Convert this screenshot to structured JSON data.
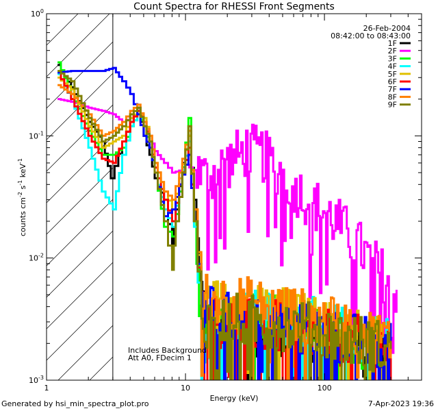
{
  "chart_data": {
    "type": "line",
    "title": "Count Spectra for RHESSI Front Segments",
    "xlabel": "Energy (keV)",
    "ylabel": "counts cm^-2 s^-1 keV^-1",
    "xscale": "log",
    "yscale": "log",
    "xlim": [
      1,
      500
    ],
    "ylim": [
      0.001,
      1
    ],
    "x_ticks": [
      1,
      10,
      100
    ],
    "x_tick_labels": [
      "1",
      "10",
      "100"
    ],
    "y_ticks": [
      0.001,
      0.01,
      0.1,
      1
    ],
    "y_tick_labels": [
      "10^-3",
      "10^-2",
      "10^-1",
      "10^0"
    ],
    "attenuated_region_max_kev": 3,
    "date": "26-Feb-2004",
    "time_range": "08:42:00 to 08:43:00",
    "annotations": [
      "Includes Background",
      "Att A0, FDecim 1"
    ],
    "series": [
      {
        "name": "1F",
        "color": "#000000",
        "points": [
          [
            1.2,
            0.38
          ],
          [
            1.5,
            0.25
          ],
          [
            2.0,
            0.13
          ],
          [
            2.5,
            0.09
          ],
          [
            2.9,
            0.045
          ],
          [
            3.5,
            0.09
          ],
          [
            4.0,
            0.13
          ],
          [
            4.5,
            0.17
          ],
          [
            5.0,
            0.1
          ],
          [
            5.5,
            0.07
          ],
          [
            6.0,
            0.045
          ],
          [
            7.0,
            0.03
          ],
          [
            8.0,
            0.012
          ],
          [
            8.5,
            0.025
          ],
          [
            9.5,
            0.06
          ],
          [
            10.5,
            0.1
          ],
          [
            11.5,
            0.03
          ],
          [
            12.5,
            0.007
          ],
          [
            14,
            0.0028
          ],
          [
            20,
            0.0022
          ],
          [
            30,
            0.0026
          ],
          [
            50,
            0.0024
          ],
          [
            80,
            0.0021
          ],
          [
            120,
            0.0019
          ],
          [
            200,
            0.0017
          ],
          [
            300,
            0.0017
          ]
        ]
      },
      {
        "name": "2F",
        "color": "#ff00ff",
        "points": [
          [
            1.2,
            0.2
          ],
          [
            1.5,
            0.19
          ],
          [
            2.0,
            0.17
          ],
          [
            2.5,
            0.16
          ],
          [
            3.0,
            0.15
          ],
          [
            3.5,
            0.13
          ],
          [
            4.0,
            0.14
          ],
          [
            4.5,
            0.15
          ],
          [
            5.0,
            0.12
          ],
          [
            5.5,
            0.1
          ],
          [
            6.0,
            0.075
          ],
          [
            7.0,
            0.06
          ],
          [
            8.0,
            0.05
          ],
          [
            9.0,
            0.052
          ],
          [
            10.0,
            0.058
          ],
          [
            12.0,
            0.05
          ],
          [
            14,
            0.045
          ],
          [
            18,
            0.055
          ],
          [
            22,
            0.065
          ],
          [
            28,
            0.078
          ],
          [
            35,
            0.07
          ],
          [
            45,
            0.055
          ],
          [
            60,
            0.038
          ],
          [
            80,
            0.028
          ],
          [
            100,
            0.024
          ],
          [
            130,
            0.018
          ],
          [
            170,
            0.013
          ],
          [
            220,
            0.009
          ],
          [
            270,
            0.007
          ],
          [
            330,
            0.0055
          ]
        ]
      },
      {
        "name": "3F",
        "color": "#00ff00",
        "points": [
          [
            1.2,
            0.4
          ],
          [
            1.5,
            0.22
          ],
          [
            2.0,
            0.11
          ],
          [
            2.5,
            0.07
          ],
          [
            3.0,
            0.07
          ],
          [
            3.5,
            0.08
          ],
          [
            4.0,
            0.12
          ],
          [
            4.5,
            0.15
          ],
          [
            5.0,
            0.12
          ],
          [
            5.5,
            0.08
          ],
          [
            6.0,
            0.05
          ],
          [
            7.0,
            0.018
          ],
          [
            8.0,
            0.015
          ],
          [
            9.0,
            0.035
          ],
          [
            10.5,
            0.14
          ],
          [
            11.5,
            0.02
          ],
          [
            12.5,
            0.004
          ],
          [
            15,
            0.0025
          ],
          [
            20,
            0.003
          ],
          [
            30,
            0.0032
          ],
          [
            50,
            0.003
          ],
          [
            80,
            0.0025
          ],
          [
            120,
            0.0022
          ],
          [
            200,
            0.002
          ],
          [
            300,
            0.0018
          ]
        ]
      },
      {
        "name": "4F",
        "color": "#00ffff",
        "points": [
          [
            1.2,
            0.32
          ],
          [
            1.5,
            0.2
          ],
          [
            2.0,
            0.08
          ],
          [
            2.5,
            0.035
          ],
          [
            3.0,
            0.025
          ],
          [
            3.5,
            0.07
          ],
          [
            4.0,
            0.12
          ],
          [
            4.5,
            0.15
          ],
          [
            5.0,
            0.13
          ],
          [
            5.5,
            0.09
          ],
          [
            6.0,
            0.05
          ],
          [
            7.0,
            0.025
          ],
          [
            8.0,
            0.018
          ],
          [
            9.0,
            0.04
          ],
          [
            10.5,
            0.09
          ],
          [
            11.5,
            0.018
          ],
          [
            13,
            0.0022
          ],
          [
            18,
            0.0028
          ],
          [
            30,
            0.0033
          ],
          [
            50,
            0.0032
          ],
          [
            80,
            0.0029
          ],
          [
            120,
            0.0025
          ],
          [
            200,
            0.0022
          ],
          [
            300,
            0.002
          ]
        ]
      },
      {
        "name": "5F",
        "color": "#e0c000",
        "points": [
          [
            1.2,
            0.3
          ],
          [
            1.5,
            0.24
          ],
          [
            2.0,
            0.12
          ],
          [
            2.5,
            0.08
          ],
          [
            3.0,
            0.09
          ],
          [
            3.5,
            0.1
          ],
          [
            4.0,
            0.14
          ],
          [
            4.5,
            0.16
          ],
          [
            5.0,
            0.14
          ],
          [
            5.5,
            0.1
          ],
          [
            6.0,
            0.06
          ],
          [
            7.0,
            0.035
          ],
          [
            8.0,
            0.025
          ],
          [
            9.0,
            0.045
          ],
          [
            10.5,
            0.1
          ],
          [
            11.5,
            0.025
          ],
          [
            13,
            0.0045
          ],
          [
            18,
            0.004
          ],
          [
            30,
            0.0038
          ],
          [
            50,
            0.0035
          ],
          [
            80,
            0.003
          ],
          [
            120,
            0.0026
          ],
          [
            200,
            0.0023
          ],
          [
            300,
            0.002
          ]
        ]
      },
      {
        "name": "6F",
        "color": "#ff0000",
        "points": [
          [
            1.2,
            0.33
          ],
          [
            1.5,
            0.2
          ],
          [
            2.0,
            0.1
          ],
          [
            2.5,
            0.065
          ],
          [
            3.0,
            0.06
          ],
          [
            3.5,
            0.09
          ],
          [
            4.0,
            0.13
          ],
          [
            4.5,
            0.16
          ],
          [
            5.0,
            0.13
          ],
          [
            5.5,
            0.09
          ],
          [
            6.0,
            0.055
          ],
          [
            7.0,
            0.03
          ],
          [
            8.0,
            0.02
          ],
          [
            9.0,
            0.04
          ],
          [
            10.5,
            0.08
          ],
          [
            11.5,
            0.02
          ],
          [
            13,
            0.0035
          ],
          [
            18,
            0.003
          ],
          [
            30,
            0.0028
          ],
          [
            50,
            0.0027
          ],
          [
            80,
            0.0024
          ],
          [
            120,
            0.0022
          ],
          [
            200,
            0.002
          ],
          [
            300,
            0.0018
          ]
        ]
      },
      {
        "name": "7F",
        "color": "#0000ff",
        "points": [
          [
            1.2,
            0.33
          ],
          [
            1.5,
            0.34
          ],
          [
            2.0,
            0.34
          ],
          [
            2.5,
            0.34
          ],
          [
            3.0,
            0.36
          ],
          [
            3.5,
            0.28
          ],
          [
            4.0,
            0.22
          ],
          [
            4.5,
            0.15
          ],
          [
            5.0,
            0.1
          ],
          [
            5.5,
            0.08
          ],
          [
            6.0,
            0.05
          ],
          [
            7.0,
            0.022
          ],
          [
            8.0,
            0.025
          ],
          [
            9.0,
            0.04
          ],
          [
            10.5,
            0.07
          ],
          [
            11.5,
            0.02
          ],
          [
            13,
            0.004
          ],
          [
            18,
            0.0032
          ],
          [
            30,
            0.003
          ],
          [
            50,
            0.0028
          ],
          [
            80,
            0.0025
          ],
          [
            120,
            0.0023
          ],
          [
            200,
            0.002
          ],
          [
            300,
            0.0018
          ]
        ]
      },
      {
        "name": "8F",
        "color": "#ff8000",
        "points": [
          [
            1.2,
            0.26
          ],
          [
            1.5,
            0.22
          ],
          [
            2.0,
            0.15
          ],
          [
            2.5,
            0.1
          ],
          [
            3.0,
            0.11
          ],
          [
            3.5,
            0.13
          ],
          [
            4.0,
            0.16
          ],
          [
            4.5,
            0.18
          ],
          [
            5.0,
            0.13
          ],
          [
            5.5,
            0.1
          ],
          [
            6.0,
            0.06
          ],
          [
            7.0,
            0.035
          ],
          [
            8.0,
            0.03
          ],
          [
            9.0,
            0.05
          ],
          [
            10.5,
            0.11
          ],
          [
            11.5,
            0.025
          ],
          [
            13,
            0.005
          ],
          [
            18,
            0.0045
          ],
          [
            30,
            0.0042
          ],
          [
            50,
            0.0038
          ],
          [
            80,
            0.0032
          ],
          [
            120,
            0.0028
          ],
          [
            200,
            0.0024
          ],
          [
            300,
            0.0021
          ]
        ]
      },
      {
        "name": "9F",
        "color": "#808000",
        "points": [
          [
            1.2,
            0.34
          ],
          [
            1.5,
            0.28
          ],
          [
            2.0,
            0.14
          ],
          [
            2.5,
            0.09
          ],
          [
            3.0,
            0.1
          ],
          [
            3.5,
            0.12
          ],
          [
            4.0,
            0.15
          ],
          [
            4.5,
            0.17
          ],
          [
            5.0,
            0.12
          ],
          [
            5.5,
            0.09
          ],
          [
            6.0,
            0.05
          ],
          [
            7.0,
            0.02
          ],
          [
            8.0,
            0.008
          ],
          [
            8.5,
            0.02
          ],
          [
            9.5,
            0.05
          ],
          [
            10.5,
            0.12
          ],
          [
            11.5,
            0.02
          ],
          [
            13,
            0.003
          ],
          [
            18,
            0.0032
          ],
          [
            30,
            0.003
          ],
          [
            50,
            0.0029
          ],
          [
            80,
            0.0026
          ],
          [
            120,
            0.0023
          ],
          [
            200,
            0.002
          ],
          [
            300,
            0.0018
          ]
        ]
      }
    ]
  },
  "footer": {
    "generated_by": "Generated by hsi_min_spectra_plot.pro",
    "timestamp": "7-Apr-2023 19:36"
  }
}
